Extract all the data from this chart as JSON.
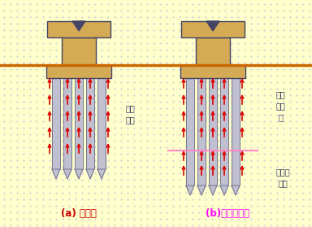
{
  "bg_color": "#ffffcc",
  "dot_color": "#bbbbdd",
  "ground_line_color": "#cc6600",
  "pile_cap_color": "#d4aa55",
  "pile_cap_border": "#444466",
  "pile_color": "#c0c0d0",
  "pile_border": "#666688",
  "arrow_color": "#dd0000",
  "pink_line_color": "#ff88cc",
  "label_a_color": "#cc0000",
  "label_b_color": "#ff00ff",
  "soil_text_color": "#333366",
  "title_a": "(a) 摩擦桩",
  "title_b": "(b)端承摩擦桩",
  "soil_label_left": "软弱\n土层",
  "soil_label_right_upper": "较软\n弱土\n层",
  "soil_label_right_lower": "较坚硬\n土层"
}
